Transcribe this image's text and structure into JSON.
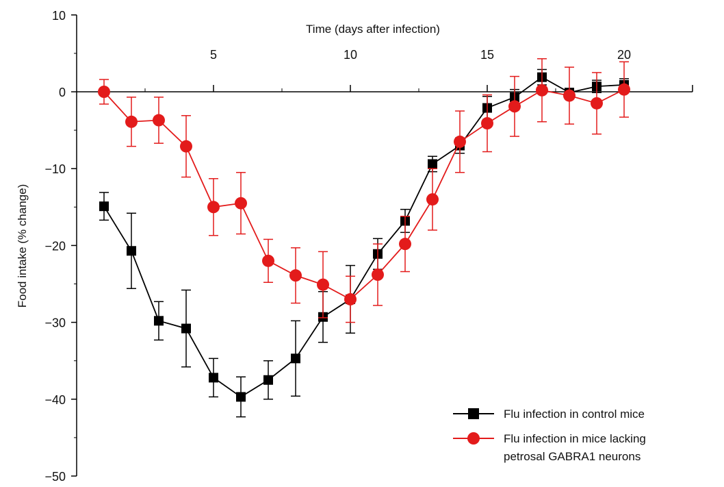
{
  "chart_data": {
    "type": "line",
    "title": "",
    "xlabel": "Time (days after infection)",
    "ylabel": "Food intake (% change)",
    "xlim": [
      0,
      22.5
    ],
    "ylim": [
      -50,
      10
    ],
    "xticks": [
      5,
      10,
      15,
      20
    ],
    "xtick_labels": [
      "5",
      "10",
      "15",
      "20"
    ],
    "yticks": [
      10,
      0,
      -10,
      -20,
      -30,
      -40,
      -50
    ],
    "ytick_labels": [
      "10",
      "0",
      "−10",
      "−20",
      "−30",
      "−40",
      "−50"
    ],
    "x": [
      1,
      2,
      3,
      4,
      5,
      6,
      7,
      8,
      9,
      10,
      11,
      12,
      13,
      14,
      15,
      16,
      17,
      18,
      19,
      20
    ],
    "series": [
      {
        "name": "Flu infection in control mice",
        "color": "#000000",
        "marker": "square",
        "values": [
          -14.9,
          -20.7,
          -29.8,
          -30.8,
          -37.2,
          -39.7,
          -37.5,
          -34.7,
          -29.3,
          -27.0,
          -21.1,
          -16.8,
          -9.4,
          -7.0,
          -2.1,
          -0.7,
          1.9,
          -0.1,
          0.7,
          0.9
        ],
        "error": [
          1.8,
          4.9,
          2.5,
          5.0,
          2.5,
          2.6,
          2.5,
          4.9,
          3.3,
          4.4,
          2.0,
          1.5,
          1.0,
          1.0,
          1.5,
          1.0,
          1.0,
          0.5,
          0.8,
          0.8
        ]
      },
      {
        "name": "Flu infection in mice lacking petrosal GABRA1 neurons",
        "legend_lines": [
          "Flu infection in mice lacking",
          "petrosal GABRA1 neurons"
        ],
        "color": "#e31b1b",
        "marker": "circle",
        "values": [
          0.0,
          -3.9,
          -3.7,
          -7.1,
          -15.0,
          -14.5,
          -22.0,
          -23.9,
          -25.1,
          -27.0,
          -23.8,
          -19.8,
          -14.0,
          -6.5,
          -4.1,
          -1.9,
          0.2,
          -0.5,
          -1.5,
          0.3
        ],
        "error": [
          1.6,
          3.2,
          3.0,
          4.0,
          3.7,
          4.0,
          2.8,
          3.6,
          4.3,
          3.0,
          4.0,
          3.6,
          4.0,
          4.0,
          3.7,
          3.9,
          4.1,
          3.7,
          4.0,
          3.6
        ]
      }
    ],
    "legend": "bottom-right",
    "grid": false
  }
}
